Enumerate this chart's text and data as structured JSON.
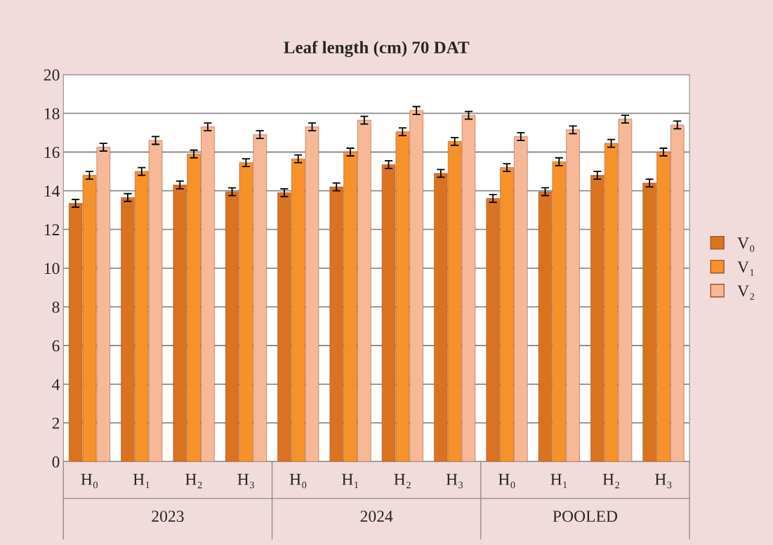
{
  "chart_data": {
    "type": "bar",
    "title": "Leaf length (cm) 70 DAT",
    "categories": [
      "H₀",
      "H₁",
      "H₂",
      "H₃",
      "H₀",
      "H₁",
      "H₂",
      "H₃",
      "H₀",
      "H₁",
      "H₂",
      "H₃"
    ],
    "series": [
      {
        "name": "V₀",
        "color": "#d9731f",
        "values": [
          13.35,
          13.65,
          14.3,
          13.95,
          13.9,
          14.2,
          15.35,
          14.9,
          13.6,
          13.95,
          14.8,
          14.4
        ],
        "errors": [
          0.2,
          0.2,
          0.2,
          0.2,
          0.2,
          0.2,
          0.2,
          0.2,
          0.2,
          0.2,
          0.2,
          0.2
        ]
      },
      {
        "name": "V₁",
        "color": "#f7922a",
        "values": [
          14.8,
          15.0,
          15.9,
          15.45,
          15.65,
          16.0,
          17.05,
          16.55,
          15.2,
          15.5,
          16.45,
          16.0
        ],
        "errors": [
          0.2,
          0.2,
          0.2,
          0.2,
          0.2,
          0.2,
          0.2,
          0.2,
          0.2,
          0.2,
          0.2,
          0.2
        ]
      },
      {
        "name": "V₂",
        "color": "#f6b896",
        "values": [
          16.25,
          16.6,
          17.3,
          16.9,
          17.3,
          17.65,
          18.15,
          17.9,
          16.8,
          17.15,
          17.7,
          17.4
        ],
        "errors": [
          0.2,
          0.2,
          0.2,
          0.2,
          0.2,
          0.2,
          0.2,
          0.2,
          0.2,
          0.2,
          0.2,
          0.2
        ]
      }
    ],
    "annotations": [
      "2023",
      "2024",
      "POOLED"
    ],
    "ylim": [
      0,
      20
    ],
    "yticks": [
      0,
      2,
      4,
      6,
      8,
      10,
      12,
      14,
      16,
      18,
      20
    ],
    "grid": "y",
    "legend": "right"
  }
}
